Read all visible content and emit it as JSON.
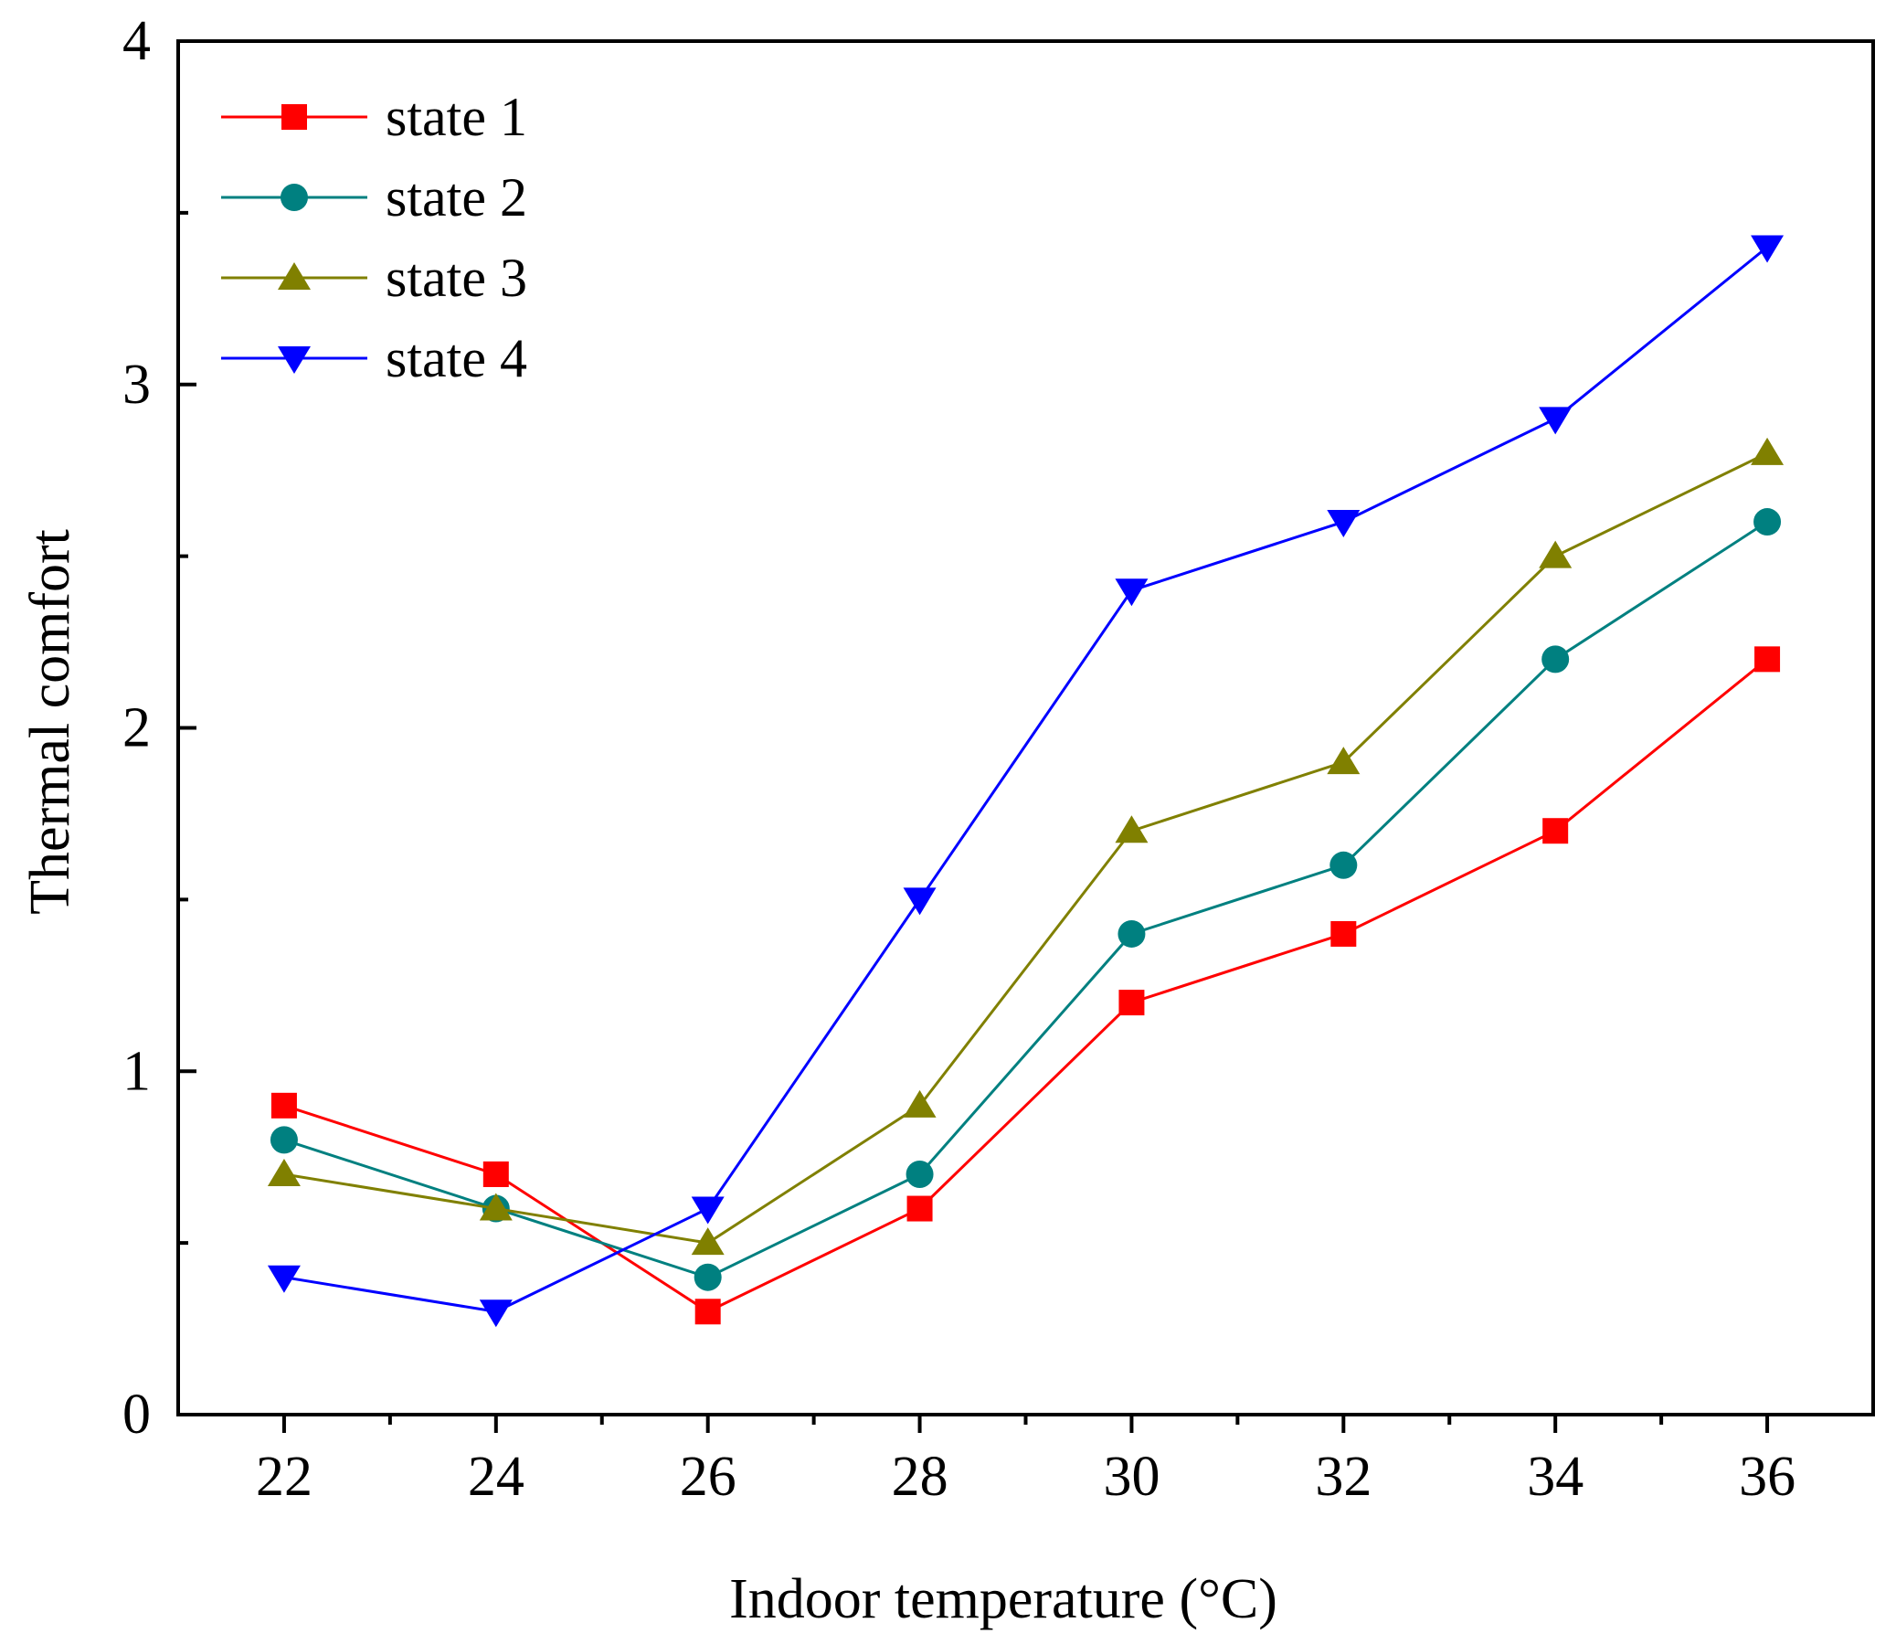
{
  "chart_data": {
    "type": "line",
    "title": "",
    "xlabel": "Indoor temperature (°C)",
    "ylabel": "Thermal comfort",
    "x": [
      22,
      24,
      26,
      28,
      30,
      32,
      34,
      36
    ],
    "x_tick_labels": [
      "22",
      "24",
      "26",
      "28",
      "30",
      "32",
      "34",
      "36"
    ],
    "xlim": [
      21,
      37
    ],
    "ylim": [
      0,
      4
    ],
    "y_ticks": [
      0,
      1,
      2,
      3,
      4
    ],
    "y_tick_labels": [
      "0",
      "1",
      "2",
      "3",
      "4"
    ],
    "grid": false,
    "legend_position": "top-left",
    "series": [
      {
        "name": "state 1",
        "color": "#ff0000",
        "marker": "square",
        "values": [
          0.9,
          0.7,
          0.3,
          0.6,
          1.2,
          1.4,
          1.7,
          2.2
        ]
      },
      {
        "name": "state 2",
        "color": "#008080",
        "marker": "circle",
        "values": [
          0.8,
          0.6,
          0.4,
          0.7,
          1.4,
          1.6,
          2.2,
          2.6
        ]
      },
      {
        "name": "state 3",
        "color": "#808000",
        "marker": "triangle-up",
        "values": [
          0.7,
          0.6,
          0.5,
          0.9,
          1.7,
          1.9,
          2.5,
          2.8
        ]
      },
      {
        "name": "state 4",
        "color": "#0000ff",
        "marker": "triangle-down",
        "values": [
          0.4,
          0.3,
          0.6,
          1.5,
          2.4,
          2.6,
          2.9,
          3.4
        ]
      }
    ]
  }
}
